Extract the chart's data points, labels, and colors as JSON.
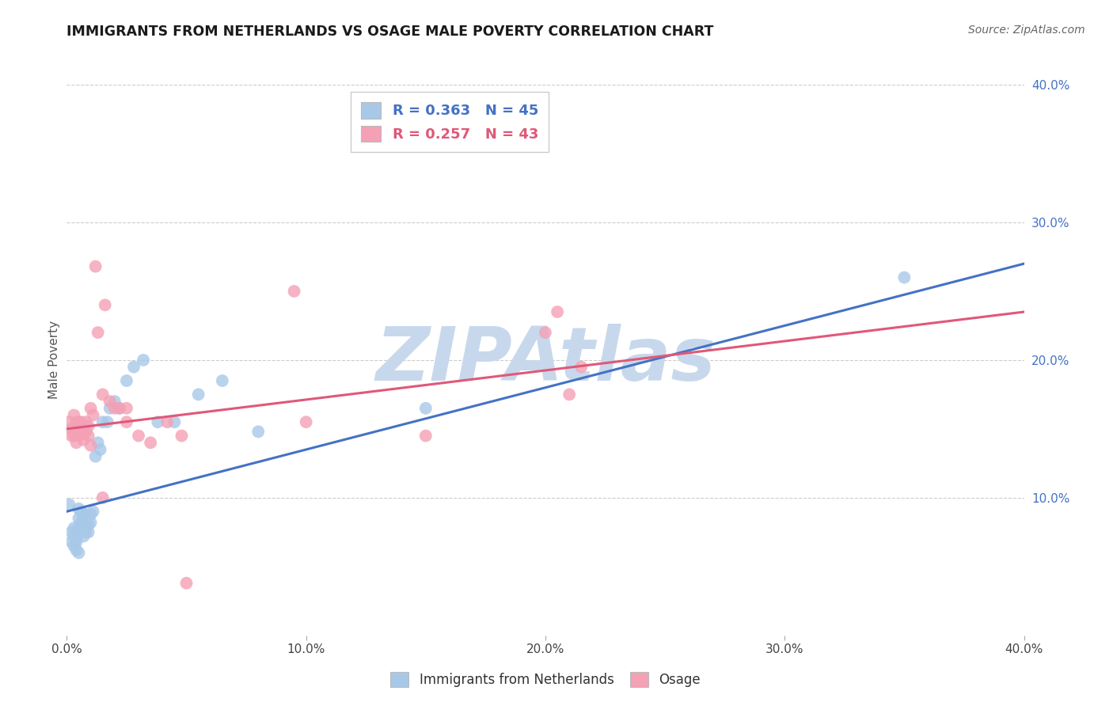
{
  "title": "IMMIGRANTS FROM NETHERLANDS VS OSAGE MALE POVERTY CORRELATION CHART",
  "source": "Source: ZipAtlas.com",
  "ylabel": "Male Poverty",
  "xlim": [
    0.0,
    0.4
  ],
  "ylim": [
    0.0,
    0.4
  ],
  "xtick_labels": [
    "0.0%",
    "10.0%",
    "20.0%",
    "30.0%",
    "40.0%"
  ],
  "xtick_vals": [
    0.0,
    0.1,
    0.2,
    0.3,
    0.4
  ],
  "ytick_labels_right": [
    "10.0%",
    "20.0%",
    "30.0%",
    "40.0%"
  ],
  "ytick_vals_right": [
    0.1,
    0.2,
    0.3,
    0.4
  ],
  "legend_label1": "Immigrants from Netherlands",
  "legend_label2": "Osage",
  "r1": 0.363,
  "n1": 45,
  "r2": 0.257,
  "n2": 43,
  "color1": "#a8c8e8",
  "color2": "#f4a0b5",
  "line_color1": "#4472c4",
  "line_color2": "#e05878",
  "background_color": "#ffffff",
  "grid_color": "#cccccc",
  "title_color": "#1a1a1a",
  "watermark_color": "#c8d8ec",
  "blue_line_x0": 0.0,
  "blue_line_y0": 0.09,
  "blue_line_x1": 0.4,
  "blue_line_y1": 0.27,
  "pink_line_x0": 0.0,
  "pink_line_y0": 0.15,
  "pink_line_x1": 0.4,
  "pink_line_y1": 0.235,
  "blue_x": [
    0.001,
    0.002,
    0.002,
    0.003,
    0.003,
    0.003,
    0.004,
    0.004,
    0.004,
    0.005,
    0.005,
    0.005,
    0.005,
    0.006,
    0.006,
    0.006,
    0.007,
    0.007,
    0.007,
    0.008,
    0.008,
    0.008,
    0.009,
    0.009,
    0.01,
    0.01,
    0.011,
    0.012,
    0.013,
    0.014,
    0.015,
    0.017,
    0.018,
    0.02,
    0.022,
    0.025,
    0.028,
    0.032,
    0.038,
    0.045,
    0.055,
    0.065,
    0.08,
    0.15,
    0.35
  ],
  "blue_y": [
    0.095,
    0.075,
    0.068,
    0.072,
    0.078,
    0.065,
    0.07,
    0.068,
    0.062,
    0.092,
    0.085,
    0.078,
    0.06,
    0.08,
    0.09,
    0.082,
    0.085,
    0.078,
    0.072,
    0.088,
    0.082,
    0.075,
    0.08,
    0.075,
    0.088,
    0.082,
    0.09,
    0.13,
    0.14,
    0.135,
    0.155,
    0.155,
    0.165,
    0.17,
    0.165,
    0.185,
    0.195,
    0.2,
    0.155,
    0.155,
    0.175,
    0.185,
    0.148,
    0.165,
    0.26
  ],
  "pink_x": [
    0.001,
    0.002,
    0.002,
    0.003,
    0.003,
    0.004,
    0.004,
    0.005,
    0.005,
    0.005,
    0.006,
    0.006,
    0.007,
    0.007,
    0.008,
    0.008,
    0.009,
    0.009,
    0.01,
    0.01,
    0.011,
    0.012,
    0.013,
    0.015,
    0.016,
    0.018,
    0.02,
    0.022,
    0.025,
    0.03,
    0.035,
    0.042,
    0.048,
    0.095,
    0.1,
    0.15,
    0.2,
    0.205,
    0.015,
    0.025,
    0.05,
    0.21,
    0.215
  ],
  "pink_y": [
    0.155,
    0.15,
    0.145,
    0.16,
    0.145,
    0.155,
    0.14,
    0.155,
    0.148,
    0.145,
    0.155,
    0.15,
    0.148,
    0.142,
    0.155,
    0.148,
    0.152,
    0.145,
    0.165,
    0.138,
    0.16,
    0.268,
    0.22,
    0.1,
    0.24,
    0.17,
    0.165,
    0.165,
    0.155,
    0.145,
    0.14,
    0.155,
    0.145,
    0.25,
    0.155,
    0.145,
    0.22,
    0.235,
    0.175,
    0.165,
    0.038,
    0.175,
    0.195
  ]
}
